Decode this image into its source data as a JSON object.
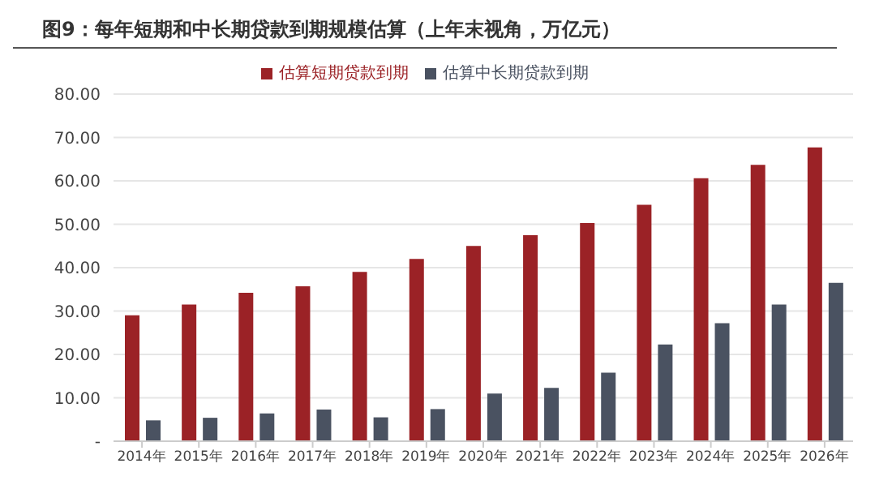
{
  "chart_data": {
    "type": "bar",
    "title": "图9：每年短期和中长期贷款到期规模估算（上年末视角，万亿元）",
    "categories": [
      "2014年",
      "2015年",
      "2016年",
      "2017年",
      "2018年",
      "2019年",
      "2020年",
      "2021年",
      "2022年",
      "2023年",
      "2024年",
      "2025年",
      "2026年"
    ],
    "series": [
      {
        "name": "估算短期贷款到期",
        "color": "#9b2226",
        "values": [
          29,
          31.5,
          34.2,
          35.7,
          39,
          42,
          45,
          47.5,
          50.3,
          54.5,
          60.6,
          63.7,
          67.7
        ]
      },
      {
        "name": "估算中长期贷款到期",
        "color": "#4a5261",
        "values": [
          4.8,
          5.4,
          6.4,
          7.3,
          5.5,
          7.4,
          11,
          12.3,
          15.8,
          22.3,
          27.2,
          31.5,
          36.5
        ]
      }
    ],
    "ylim": [
      0,
      80
    ],
    "yticks": [
      {
        "value": 0,
        "label": "-"
      },
      {
        "value": 10,
        "label": "10.00"
      },
      {
        "value": 20,
        "label": "20.00"
      },
      {
        "value": 30,
        "label": "30.00"
      },
      {
        "value": 40,
        "label": "40.00"
      },
      {
        "value": 50,
        "label": "50.00"
      },
      {
        "value": 60,
        "label": "60.00"
      },
      {
        "value": 70,
        "label": "70.00"
      },
      {
        "value": 80,
        "label": "80.00"
      }
    ],
    "grid": "y",
    "legend": "top"
  }
}
